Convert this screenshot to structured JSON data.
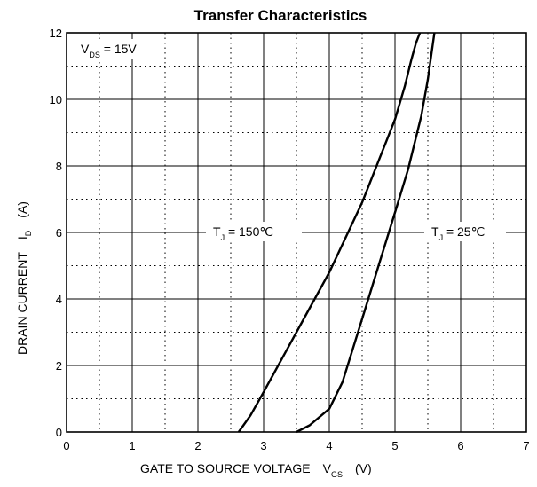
{
  "chart_data": {
    "type": "line",
    "title": "Transfer Characteristics",
    "xlabel": {
      "main": "GATE TO SOURCE VOLTAGE",
      "symbol": "V",
      "sub": "GS",
      "unit": "(V)"
    },
    "ylabel": {
      "main": "DRAIN CURRENT",
      "symbol": "I",
      "sub": "D",
      "unit": "(A)"
    },
    "xlim": [
      0,
      7
    ],
    "ylim": [
      0,
      12
    ],
    "x_ticks": [
      0,
      1,
      2,
      3,
      4,
      5,
      6,
      7
    ],
    "y_ticks": [
      0,
      2,
      4,
      6,
      8,
      10,
      12
    ],
    "major_grid": true,
    "minor_grid": "dotted",
    "condition": {
      "symbol": "V",
      "sub": "DS",
      "text": " = 15V"
    },
    "series": [
      {
        "name": {
          "symbol": "T",
          "sub": "J",
          "text": " = 150℃"
        },
        "points": [
          [
            2.62,
            0
          ],
          [
            2.8,
            0.5
          ],
          [
            3.0,
            1.2
          ],
          [
            3.5,
            3.0
          ],
          [
            4.0,
            4.8
          ],
          [
            4.5,
            6.9
          ],
          [
            4.9,
            8.9
          ],
          [
            5.0,
            9.4
          ],
          [
            5.15,
            10.4
          ],
          [
            5.25,
            11.2
          ],
          [
            5.32,
            11.7
          ],
          [
            5.38,
            12
          ]
        ]
      },
      {
        "name": {
          "symbol": "T",
          "sub": "J",
          "text": " = 25℃"
        },
        "points": [
          [
            3.5,
            0
          ],
          [
            3.7,
            0.2
          ],
          [
            4.0,
            0.7
          ],
          [
            4.2,
            1.5
          ],
          [
            4.5,
            3.4
          ],
          [
            5.0,
            6.6
          ],
          [
            5.2,
            7.9
          ],
          [
            5.4,
            9.5
          ],
          [
            5.5,
            10.6
          ],
          [
            5.6,
            12
          ]
        ]
      }
    ]
  }
}
